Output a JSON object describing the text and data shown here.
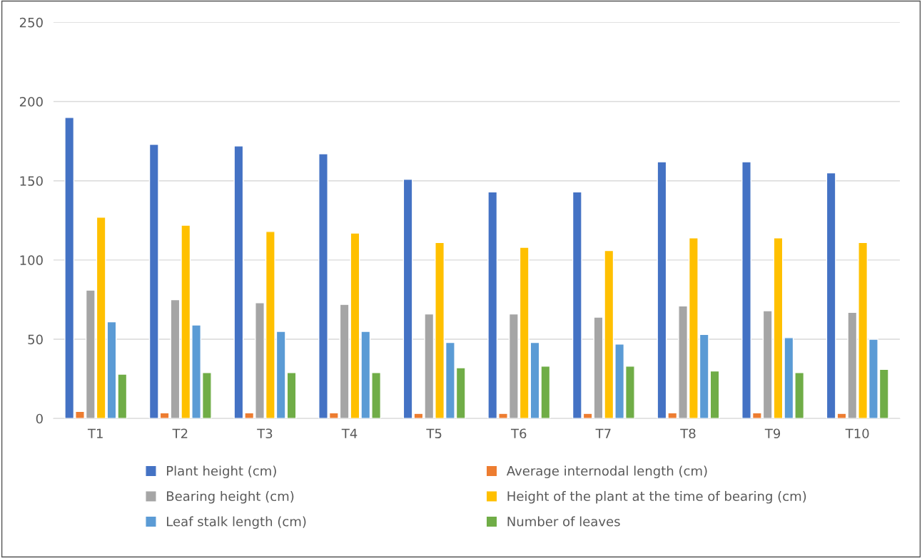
{
  "chart_data": {
    "type": "bar",
    "categories": [
      "T1",
      "T2",
      "T3",
      "T4",
      "T5",
      "T6",
      "T7",
      "T8",
      "T9",
      "T10"
    ],
    "series": [
      {
        "name": "Plant height (cm)",
        "color": "#4472c4",
        "values": [
          190,
          173,
          172,
          167,
          151,
          143,
          143,
          162,
          162,
          155
        ]
      },
      {
        "name": "Average internodal length (cm)",
        "color": "#ed7d31",
        "values": [
          4.5,
          3.6,
          3.6,
          3.6,
          3.2,
          3.2,
          3.2,
          3.6,
          3.6,
          3.2
        ]
      },
      {
        "name": "Bearing height (cm)",
        "color": "#a5a5a5",
        "values": [
          81,
          75,
          73,
          72,
          66,
          66,
          64,
          71,
          68,
          67
        ]
      },
      {
        "name": "Height of the plant at the time of bearing (cm)",
        "color": "#ffc000",
        "values": [
          127,
          122,
          118,
          117,
          111,
          108,
          106,
          114,
          114,
          111
        ]
      },
      {
        "name": "Leaf stalk length (cm)",
        "color": "#5b9bd5",
        "values": [
          61,
          59,
          55,
          55,
          48,
          48,
          47,
          53,
          51,
          50
        ]
      },
      {
        "name": "Number of leaves",
        "color": "#70ad47",
        "values": [
          28,
          29,
          29,
          29,
          32,
          33,
          33,
          30,
          29,
          31
        ]
      }
    ],
    "ylim": [
      0,
      250
    ],
    "yticks": [
      0,
      50,
      100,
      150,
      200,
      250
    ],
    "grid": "y",
    "legend": "bottom"
  }
}
